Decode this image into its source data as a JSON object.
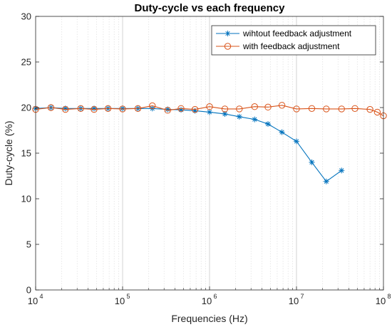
{
  "chart_data": {
    "type": "line",
    "title": "Duty-cycle vs each frequency",
    "xlabel": "Frequencies (Hz)",
    "ylabel": "Duty-cycle (%)",
    "x_scale": "log",
    "xlim": [
      10000,
      100000000
    ],
    "ylim": [
      0,
      30
    ],
    "x_ticks": [
      {
        "base": "10",
        "exp": "4",
        "value": 10000
      },
      {
        "base": "10",
        "exp": "5",
        "value": 100000
      },
      {
        "base": "10",
        "exp": "6",
        "value": 1000000
      },
      {
        "base": "10",
        "exp": "7",
        "value": 10000000
      },
      {
        "base": "10",
        "exp": "8",
        "value": 100000000
      }
    ],
    "y_ticks": [
      0,
      5,
      10,
      15,
      20,
      25,
      30
    ],
    "grid": "x-major-and-minor",
    "legend_position": "top-right",
    "series": [
      {
        "name": "wihtout feedback adjustment",
        "color": "#0072BD",
        "marker": "asterisk",
        "x": [
          10000,
          15000,
          22000,
          33000,
          47000,
          68000,
          100000,
          150000,
          220000,
          330000,
          470000,
          680000,
          1000000,
          1500000,
          2200000,
          3300000,
          4700000,
          6800000,
          10000000,
          15000000,
          22000000,
          33000000
        ],
        "values": [
          19.9,
          20.0,
          19.9,
          19.9,
          19.9,
          19.9,
          19.9,
          19.9,
          19.9,
          19.8,
          19.75,
          19.65,
          19.5,
          19.3,
          19.0,
          18.7,
          18.2,
          17.3,
          16.3,
          14.0,
          11.9,
          13.1
        ]
      },
      {
        "name": "with feedback adjustment",
        "color": "#D95319",
        "marker": "circle",
        "x": [
          10000,
          15000,
          22000,
          33000,
          47000,
          68000,
          100000,
          150000,
          220000,
          330000,
          470000,
          680000,
          1000000,
          1500000,
          2200000,
          3300000,
          4700000,
          6800000,
          10000000,
          15000000,
          22000000,
          33000000,
          47000000,
          70000000,
          85000000,
          100000000
        ],
        "values": [
          19.8,
          20.0,
          19.8,
          19.9,
          19.8,
          19.9,
          19.85,
          19.9,
          20.2,
          19.7,
          19.9,
          19.8,
          20.1,
          19.85,
          19.85,
          20.1,
          20.05,
          20.25,
          19.85,
          19.9,
          19.85,
          19.85,
          19.9,
          19.8,
          19.5,
          19.1
        ]
      }
    ]
  }
}
